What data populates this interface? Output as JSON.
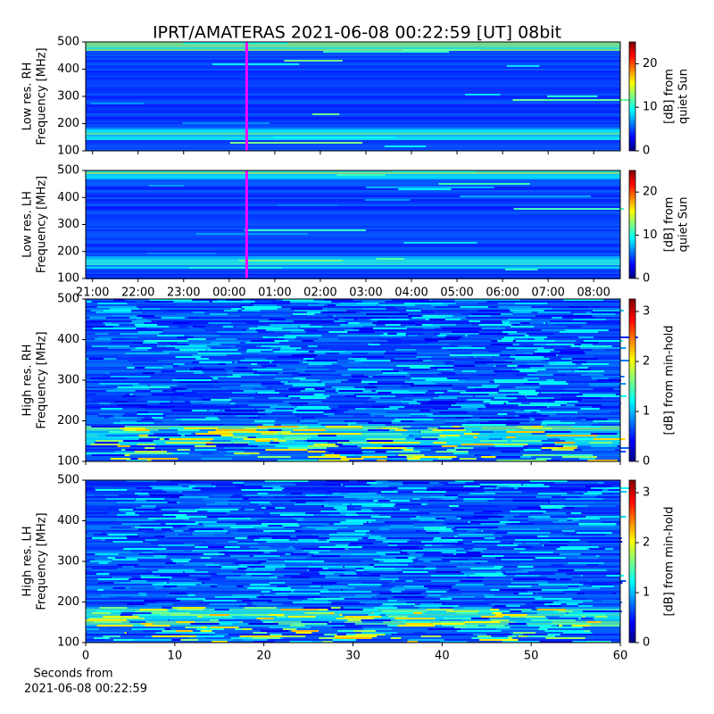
{
  "title": "IPRT/AMATERAS 2021-06-08 00:22:59 [UT]   08bit",
  "chart_data": [
    {
      "type": "heatmap",
      "ylabel": [
        "Low res. RH",
        "Frequency [MHz]"
      ],
      "ylim": [
        100,
        500
      ],
      "yticks": [
        100,
        200,
        300,
        400,
        500
      ],
      "xlim": [
        "20:51",
        "08:35"
      ],
      "cursor": "00:22:59",
      "colorbar": {
        "label": [
          "[dB] from",
          "quiet Sun"
        ],
        "lim": [
          0,
          25
        ],
        "ticks": [
          0,
          10,
          20
        ]
      }
    },
    {
      "type": "heatmap",
      "ylabel": [
        "Low res. LH",
        "Frequency [MHz]"
      ],
      "ylim": [
        100,
        500
      ],
      "yticks": [
        100,
        200,
        300,
        400,
        500
      ],
      "xlim": [
        "20:51",
        "08:35"
      ],
      "cursor": "00:22:59",
      "xticks": [
        "21:00",
        "22:00",
        "23:00",
        "00:00",
        "01:00",
        "02:00",
        "03:00",
        "04:00",
        "05:00",
        "06:00",
        "07:00",
        "08:00"
      ],
      "colorbar": {
        "label": [
          "[dB] from",
          "quiet Sun"
        ],
        "lim": [
          0,
          25
        ],
        "ticks": [
          0,
          10,
          20
        ]
      }
    },
    {
      "type": "heatmap",
      "ylabel": [
        "High res. RH",
        "Frequency [MHz]"
      ],
      "ylim": [
        100,
        500
      ],
      "yticks": [
        100,
        200,
        300,
        400,
        500
      ],
      "xlim": [
        0,
        60
      ],
      "colorbar": {
        "label": [
          "[dB] from min-hold"
        ],
        "lim": [
          0,
          3.25
        ],
        "ticks": [
          0,
          1,
          2,
          3
        ]
      }
    },
    {
      "type": "heatmap",
      "ylabel": [
        "High res. LH",
        "Frequency [MHz]"
      ],
      "ylim": [
        100,
        500
      ],
      "yticks": [
        100,
        200,
        300,
        400,
        500
      ],
      "xlim": [
        0,
        60
      ],
      "xticks": [
        0,
        10,
        20,
        30,
        40,
        50,
        60
      ],
      "xlabel": [
        "Seconds from",
        "2021-06-08 00:22:59"
      ],
      "colorbar": {
        "label": [
          "[dB] from min-hold"
        ],
        "lim": [
          0,
          3.25
        ],
        "ticks": [
          0,
          1,
          2,
          3
        ]
      }
    }
  ]
}
